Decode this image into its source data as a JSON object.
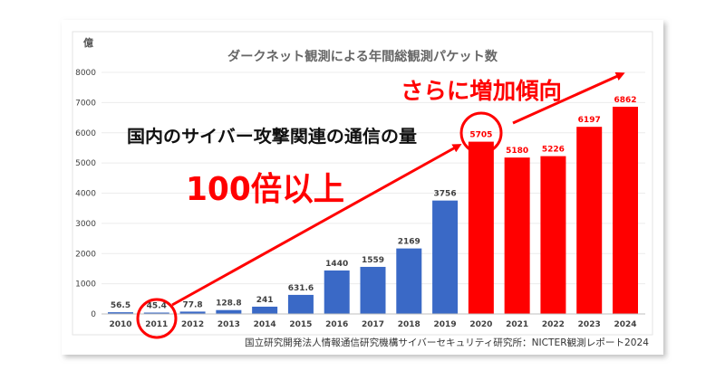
{
  "chart_data": {
    "type": "bar",
    "title": "ダークネット観測による年間総観測パケット数",
    "ylabel": "億",
    "categories": [
      "2010",
      "2011",
      "2012",
      "2013",
      "2014",
      "2015",
      "2016",
      "2017",
      "2018",
      "2019",
      "2020",
      "2021",
      "2022",
      "2023",
      "2024"
    ],
    "values": [
      56.5,
      45.4,
      77.8,
      128.8,
      241,
      631.6,
      1440,
      1559,
      2169,
      3756,
      5705,
      5180,
      5226,
      6197,
      6862
    ],
    "ylim": [
      0,
      8000
    ],
    "yticks": [
      0,
      1000,
      2000,
      3000,
      4000,
      5000,
      6000,
      7000,
      8000
    ],
    "grid": true,
    "bar_colors": [
      "#3A69C6",
      "#3A69C6",
      "#3A69C6",
      "#3A69C6",
      "#3A69C6",
      "#3A69C6",
      "#3A69C6",
      "#3A69C6",
      "#3A69C6",
      "#3A69C6",
      "#FF0000",
      "#FF0000",
      "#FF0000",
      "#FF0000",
      "#FF0000"
    ]
  },
  "annotations": {
    "trend": "さらに増加傾向",
    "subject": "国内のサイバー攻撃関連の通信の量",
    "growth": "100倍以上"
  },
  "source": "国立研究開発法人情報通信研究機構サイバーセキュリティ研究所：NICTER観測レポート2024",
  "colors": {
    "base": "#3A69C6",
    "highlight": "#FF0000",
    "data_label": "#404040"
  }
}
